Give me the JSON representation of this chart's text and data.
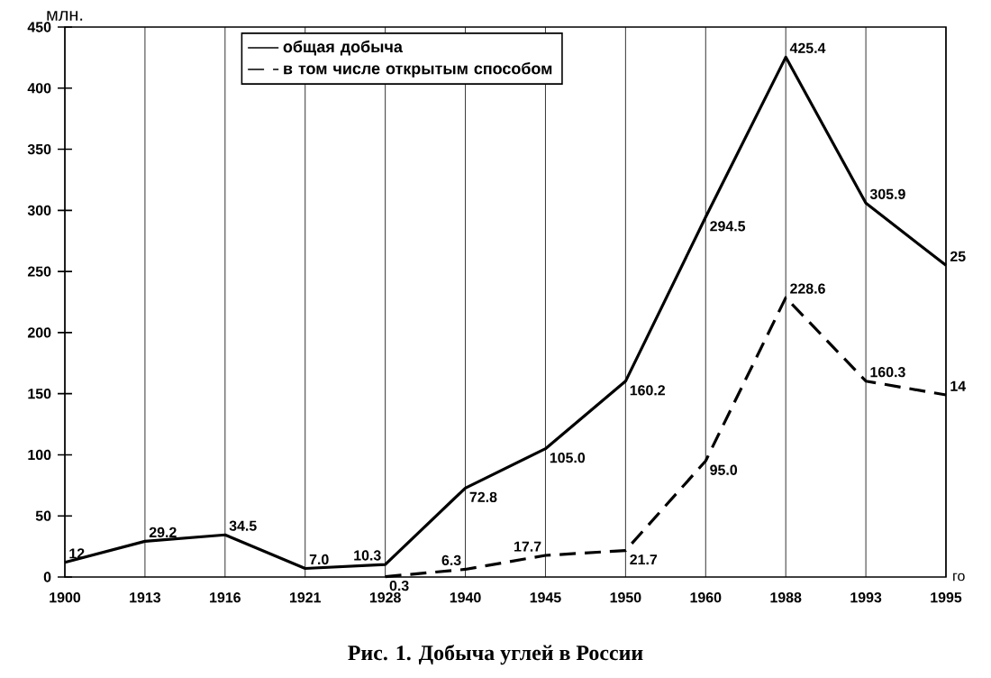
{
  "chart_data": {
    "type": "line",
    "title": "Рис. 1. Добыча углей в России",
    "xlabel": "го",
    "ylabel": "млн.",
    "categories": [
      "1900",
      "1913",
      "1916",
      "1921",
      "1928",
      "1940",
      "1945",
      "1950",
      "1960",
      "1988",
      "1993",
      "1995"
    ],
    "series": [
      {
        "name": "общая добыча",
        "color": "#000000",
        "line_style": "solid",
        "values": [
          12,
          29.2,
          34.5,
          7.0,
          10.3,
          72.8,
          105.0,
          160.2,
          294.5,
          425.4,
          305.9,
          255
        ],
        "value_labels": [
          "12",
          "29.2",
          "34.5",
          "7.0",
          "10.3",
          "72.8",
          "105.0",
          "160.2",
          "294.5",
          "425.4",
          "305.9",
          null
        ]
      },
      {
        "name": "в том числе открытым способом",
        "color": "#000000",
        "line_style": "dashed",
        "values": [
          null,
          null,
          null,
          null,
          0.3,
          6.3,
          17.7,
          21.7,
          95.0,
          228.6,
          160.3,
          149
        ],
        "value_labels": [
          null,
          null,
          null,
          null,
          "0.3",
          "6.3",
          "17.7",
          "21.7",
          "95.0",
          "228.6",
          "160.3",
          null
        ]
      }
    ],
    "ylim": [
      0,
      450
    ],
    "yticks": [
      0,
      50,
      100,
      150,
      200,
      250,
      300,
      350,
      400,
      450
    ],
    "grid": "x",
    "legend": "top",
    "annotations": [
      {
        "text": "25",
        "x": "1995",
        "y": 255
      },
      {
        "text": "14",
        "x": "1995",
        "y": 149
      }
    ]
  }
}
